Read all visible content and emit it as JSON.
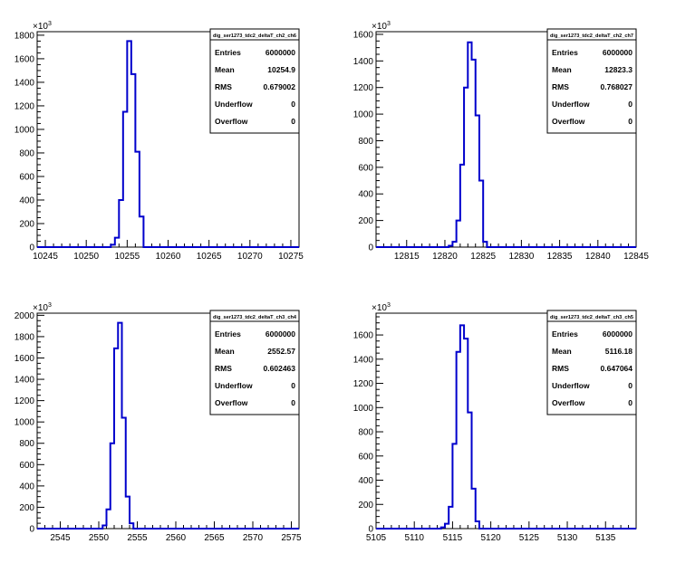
{
  "chart_data": [
    {
      "type": "histogram",
      "hist_name": "dig_ser1273_tdc2_deltaT_ch2_ch6",
      "y_multiplier": "10",
      "y_exponent": "3",
      "xlim": [
        10244,
        10276
      ],
      "ylim": [
        0,
        1830
      ],
      "x_ticks": [
        "10245",
        "10250",
        "10255",
        "10260",
        "10265",
        "10270",
        "10275"
      ],
      "y_ticks": [
        "0",
        "200",
        "400",
        "600",
        "800",
        "1000",
        "1200",
        "1400",
        "1600",
        "1800"
      ],
      "bin_width": 0.5,
      "bins_x": [
        10253,
        10253.5,
        10254,
        10254.5,
        10255,
        10255.5,
        10256,
        10256.5
      ],
      "bins_y": [
        20,
        80,
        400,
        1150,
        1750,
        1470,
        810,
        260
      ],
      "stats": {
        "Entries": "6000000",
        "Mean": "10254.9",
        "RMS": "0.679002",
        "Underflow": "0",
        "Overflow": "0"
      }
    },
    {
      "type": "histogram",
      "hist_name": "dig_ser1273_tdc2_deltaT_ch2_ch7",
      "y_multiplier": "10",
      "y_exponent": "3",
      "xlim": [
        12811,
        12845
      ],
      "ylim": [
        0,
        1620
      ],
      "x_ticks": [
        "12815",
        "12820",
        "12825",
        "12830",
        "12835",
        "12840",
        "12845"
      ],
      "y_ticks": [
        "0",
        "200",
        "400",
        "600",
        "800",
        "1000",
        "1200",
        "1400",
        "1600"
      ],
      "bin_width": 0.5,
      "bins_x": [
        12820.5,
        12821,
        12821.5,
        12822,
        12822.5,
        12823,
        12823.5,
        12824,
        12824.5,
        12825
      ],
      "bins_y": [
        10,
        40,
        200,
        620,
        1200,
        1540,
        1410,
        990,
        500,
        40
      ],
      "stats": {
        "Entries": "6000000",
        "Mean": "12823.3",
        "RMS": "0.768027",
        "Underflow": "0",
        "Overflow": "0"
      }
    },
    {
      "type": "histogram",
      "hist_name": "dig_ser1273_tdc2_deltaT_ch3_ch4",
      "y_multiplier": "10",
      "y_exponent": "3",
      "xlim": [
        2542,
        2576
      ],
      "ylim": [
        0,
        2020
      ],
      "x_ticks": [
        "2545",
        "2550",
        "2555",
        "2560",
        "2565",
        "2570",
        "2575"
      ],
      "y_ticks": [
        "0",
        "200",
        "400",
        "600",
        "800",
        "1000",
        "1200",
        "1400",
        "1600",
        "1800",
        "2000"
      ],
      "bin_width": 0.5,
      "bins_x": [
        2550.5,
        2551,
        2551.5,
        2552,
        2552.5,
        2553,
        2553.5,
        2554
      ],
      "bins_y": [
        30,
        180,
        800,
        1690,
        1930,
        1040,
        300,
        50
      ],
      "stats": {
        "Entries": "6000000",
        "Mean": "2552.57",
        "RMS": "0.602463",
        "Underflow": "0",
        "Overflow": "0"
      }
    },
    {
      "type": "histogram",
      "hist_name": "dig_ser1273_tdc2_deltaT_ch3_ch5",
      "y_multiplier": "10",
      "y_exponent": "3",
      "xlim": [
        5105,
        5139
      ],
      "ylim": [
        0,
        1780
      ],
      "x_ticks": [
        "5105",
        "5110",
        "5115",
        "5120",
        "5125",
        "5130",
        "5135"
      ],
      "y_ticks": [
        "0",
        "200",
        "400",
        "600",
        "800",
        "1000",
        "1200",
        "1400",
        "1600"
      ],
      "bin_width": 0.5,
      "bins_x": [
        5113.5,
        5114,
        5114.5,
        5115,
        5115.5,
        5116,
        5116.5,
        5117,
        5117.5,
        5118
      ],
      "bins_y": [
        10,
        40,
        180,
        700,
        1460,
        1680,
        1570,
        960,
        330,
        60
      ],
      "stats": {
        "Entries": "6000000",
        "Mean": "5116.18",
        "RMS": "0.647064",
        "Underflow": "0",
        "Overflow": "0"
      }
    }
  ]
}
